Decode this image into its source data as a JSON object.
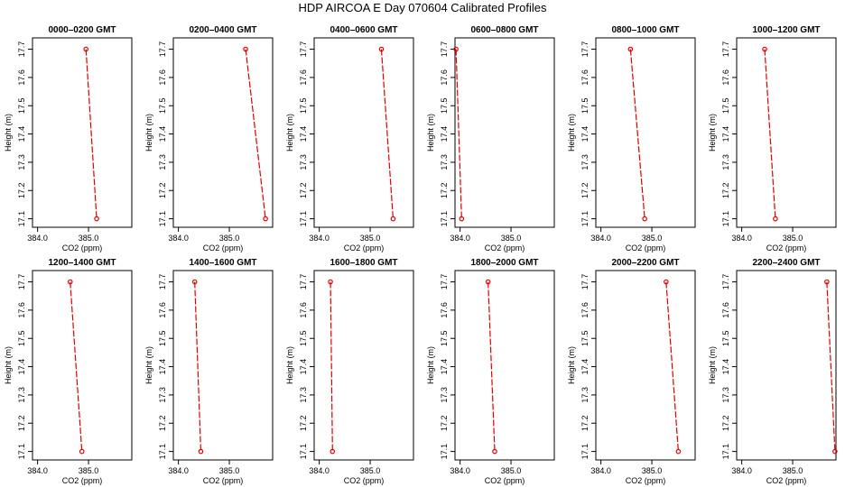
{
  "title": "HDP AIRCOA E  Day 070604  Calibrated Profiles",
  "colors": {
    "line": "#dd0000",
    "marker": "#dd0000",
    "frame": "#000000"
  },
  "chart_data": {
    "type": "line",
    "shared": {
      "xlabel": "CO2 (ppm)",
      "ylabel": "Height (m)",
      "xlim": [
        383.9,
        385.85
      ],
      "ylim": [
        17.07,
        17.74
      ],
      "xticks": [
        384.0,
        385.0
      ],
      "xtick_labels": [
        "384.0",
        "385.0"
      ],
      "yticks": [
        17.1,
        17.2,
        17.3,
        17.4,
        17.5,
        17.6,
        17.7
      ],
      "ytick_labels": [
        "17.1",
        "17.2",
        "17.3",
        "17.4",
        "17.5",
        "17.6",
        "17.7"
      ]
    },
    "panels": [
      {
        "title": "0000–0200 GMT",
        "points": [
          {
            "co2": 384.95,
            "height": 17.7
          },
          {
            "co2": 385.16,
            "height": 17.1
          }
        ]
      },
      {
        "title": "0200–0400 GMT",
        "points": [
          {
            "co2": 385.32,
            "height": 17.7
          },
          {
            "co2": 385.71,
            "height": 17.1
          }
        ]
      },
      {
        "title": "0400–0600 GMT",
        "points": [
          {
            "co2": 385.22,
            "height": 17.7
          },
          {
            "co2": 385.45,
            "height": 17.1
          }
        ]
      },
      {
        "title": "0600–0800 GMT",
        "points": [
          {
            "co2": 383.92,
            "height": 17.7
          },
          {
            "co2": 384.03,
            "height": 17.1
          }
        ]
      },
      {
        "title": "0800–1000 GMT",
        "points": [
          {
            "co2": 384.58,
            "height": 17.7
          },
          {
            "co2": 384.86,
            "height": 17.1
          }
        ]
      },
      {
        "title": "1000–1200 GMT",
        "points": [
          {
            "co2": 384.45,
            "height": 17.7
          },
          {
            "co2": 384.66,
            "height": 17.1
          }
        ]
      },
      {
        "title": "1200–1400 GMT",
        "points": [
          {
            "co2": 384.64,
            "height": 17.7
          },
          {
            "co2": 384.87,
            "height": 17.1
          }
        ]
      },
      {
        "title": "1400–1600 GMT",
        "points": [
          {
            "co2": 384.32,
            "height": 17.7
          },
          {
            "co2": 384.44,
            "height": 17.1
          }
        ]
      },
      {
        "title": "1600–1800 GMT",
        "points": [
          {
            "co2": 384.22,
            "height": 17.7
          },
          {
            "co2": 384.26,
            "height": 17.1
          }
        ]
      },
      {
        "title": "1800–2000 GMT",
        "points": [
          {
            "co2": 384.55,
            "height": 17.7
          },
          {
            "co2": 384.68,
            "height": 17.1
          }
        ]
      },
      {
        "title": "2000–2200 GMT",
        "points": [
          {
            "co2": 385.28,
            "height": 17.7
          },
          {
            "co2": 385.52,
            "height": 17.1
          }
        ]
      },
      {
        "title": "2200–2400 GMT",
        "points": [
          {
            "co2": 385.67,
            "height": 17.7
          },
          {
            "co2": 385.83,
            "height": 17.1
          }
        ]
      }
    ]
  }
}
